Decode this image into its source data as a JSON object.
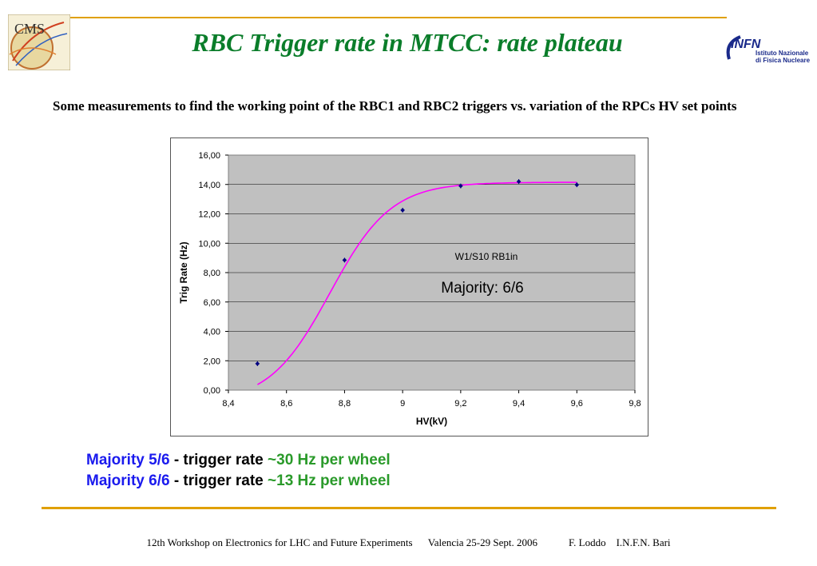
{
  "title": "RBC Trigger rate in  MTCC: rate plateau",
  "intro": "Some measurements to  find the working point of the RBC1 and RBC2 triggers vs. variation of the RPCs HV set points",
  "logos": {
    "left_text": "CMS",
    "right_text": "INFN",
    "right_subtext_1": "Istituto Nazionale",
    "right_subtext_2": "di Fisica Nucleare"
  },
  "colors": {
    "title": "#0a7d2a",
    "rule": "#e0a000",
    "plot_bg": "#c0c0c0",
    "curve": "#ff00ff",
    "points": "#000080",
    "majority_blue": "#1a1aee",
    "rate_green": "#2a9a2a"
  },
  "chart_data": {
    "type": "scatter",
    "xlabel": "HV(kV)",
    "ylabel": "Trig Rate (Hz)",
    "xlim": [
      8.4,
      9.8
    ],
    "ylim": [
      0,
      16
    ],
    "x_ticks": [
      "8,4",
      "8,6",
      "8,8",
      "9",
      "9,2",
      "9,4",
      "9,6",
      "9,8"
    ],
    "y_ticks": [
      "0,00",
      "2,00",
      "4,00",
      "6,00",
      "8,00",
      "10,00",
      "12,00",
      "14,00",
      "16,00"
    ],
    "grid": true,
    "points": [
      {
        "x": 8.5,
        "y": 1.8
      },
      {
        "x": 8.8,
        "y": 8.85
      },
      {
        "x": 9.0,
        "y": 12.25
      },
      {
        "x": 9.2,
        "y": 13.9
      },
      {
        "x": 9.4,
        "y": 14.2
      },
      {
        "x": 9.6,
        "y": 13.98
      }
    ],
    "fit_curve": "sigmoid",
    "annotations": {
      "chamber": "W1/S10 RB1in",
      "majority": "Majority: 6/6"
    }
  },
  "summary": [
    {
      "majority": "Majority 5/6",
      "dash": " - trigger rate ",
      "rate": "~30 Hz per wheel"
    },
    {
      "majority": "Majority 6/6",
      "dash": " - trigger rate ",
      "rate": "~13 Hz per wheel"
    }
  ],
  "footer": "12th Workshop on Electronics for LHC and Future Experiments      Valencia 25-29 Sept. 2006            F. Loddo    I.N.F.N. Bari"
}
